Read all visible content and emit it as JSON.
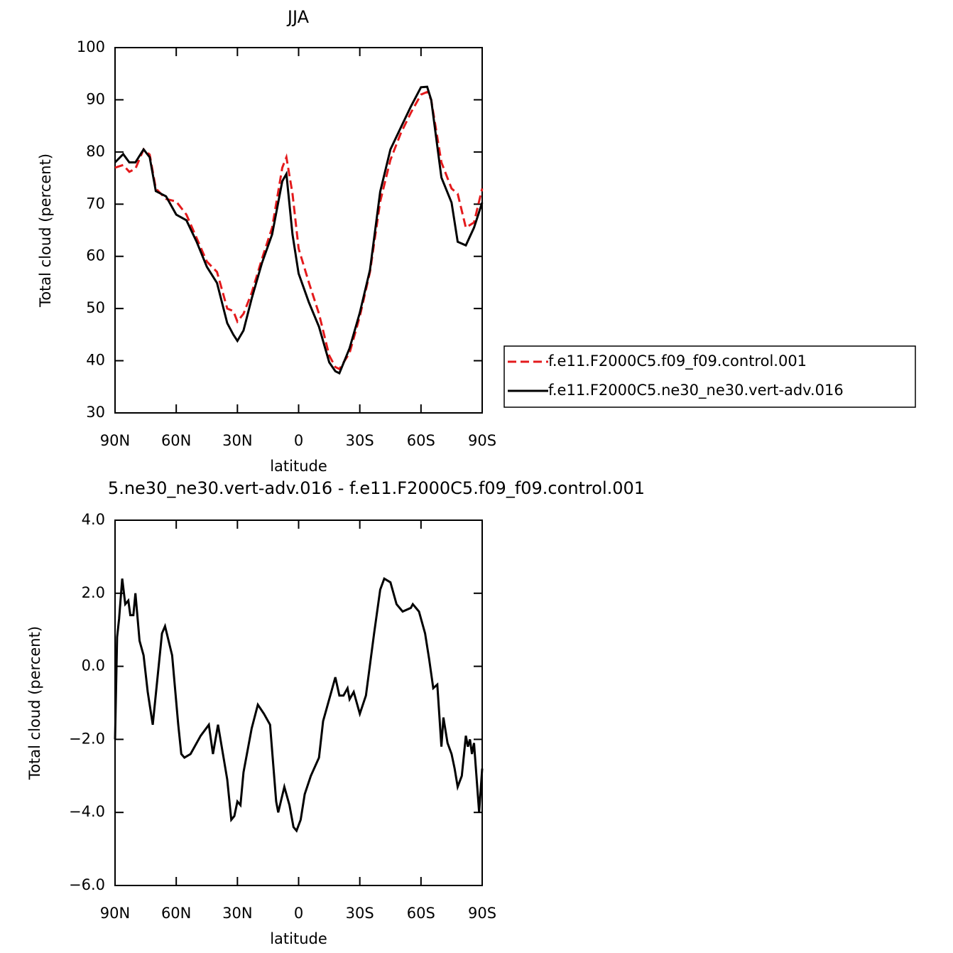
{
  "chart_data": [
    {
      "type": "line",
      "title": "JJA",
      "x_label": "latitude",
      "y_label": "Total cloud (percent)",
      "xlim": [
        90,
        -90
      ],
      "ylim": [
        30,
        100
      ],
      "xticks": [
        {
          "value": 90,
          "label": "90N"
        },
        {
          "value": 60,
          "label": "60N"
        },
        {
          "value": 30,
          "label": "30N"
        },
        0,
        {
          "value": -30,
          "label": "30S"
        },
        {
          "value": -60,
          "label": "60S"
        },
        {
          "value": -90,
          "label": "90S"
        }
      ],
      "yticks": [
        30,
        40,
        50,
        60,
        70,
        80,
        90,
        100
      ],
      "legend_position": "right",
      "x": [
        90,
        86,
        83,
        80,
        76,
        73,
        70,
        65,
        60,
        55,
        50,
        45,
        40,
        35,
        32,
        30,
        27,
        23,
        18,
        13,
        8,
        6,
        3,
        0,
        -5,
        -10,
        -15,
        -18,
        -20,
        -25,
        -30,
        -35,
        -40,
        -45,
        -50,
        -55,
        -60,
        -63,
        -65,
        -70,
        -75,
        -78,
        -82,
        -86,
        -90
      ],
      "series": [
        {
          "name": "f.e11.F2000C5.f09_f09.control.001",
          "color": "#e41a1c",
          "line_style": "dashed",
          "values": [
            77,
            77.5,
            76.2,
            76.8,
            80.5,
            79.5,
            73,
            71,
            70.5,
            68,
            63.5,
            59,
            57,
            50,
            49.5,
            47.5,
            49,
            53,
            59.5,
            65.5,
            77,
            79,
            72,
            61.5,
            55,
            49,
            41,
            38.8,
            38.4,
            41.5,
            48.5,
            57,
            70.5,
            78.5,
            83.5,
            87.5,
            91,
            91.5,
            90,
            78,
            73,
            72,
            65.5,
            66.5,
            73
          ]
        },
        {
          "name": "f.e11.F2000C5.ne30_ne30.vert-adv.016",
          "color": "#000000",
          "line_style": "solid",
          "values": [
            78,
            79.6,
            78,
            78,
            80.5,
            79,
            72.5,
            71.5,
            68,
            66.9,
            62.8,
            58,
            54.9,
            47.2,
            45,
            43.8,
            45.8,
            51.9,
            58.7,
            64.2,
            74.4,
            75.8,
            64.2,
            56.7,
            51.2,
            46.5,
            39.7,
            38,
            37.6,
            42.4,
            49.2,
            57.4,
            72.4,
            80.5,
            84.6,
            88.7,
            92.4,
            92.5,
            90,
            75.1,
            70.3,
            62.8,
            62.1,
            65.5,
            70.3
          ]
        }
      ]
    },
    {
      "type": "line",
      "title": "5.ne30_ne30.vert-adv.016 - f.e11.F2000C5.f09_f09.control.001",
      "x_label": "latitude",
      "y_label": "Total cloud (percent)",
      "xlim": [
        90,
        -90
      ],
      "ylim": [
        -6,
        4
      ],
      "xticks": [
        {
          "value": 90,
          "label": "90N"
        },
        {
          "value": 60,
          "label": "60N"
        },
        {
          "value": 30,
          "label": "30N"
        },
        0,
        {
          "value": -30,
          "label": "30S"
        },
        {
          "value": -60,
          "label": "60S"
        },
        {
          "value": -90,
          "label": "90S"
        }
      ],
      "yticks": [
        {
          "value": -6,
          "label": "−6.0"
        },
        {
          "value": -4,
          "label": "−4.0"
        },
        {
          "value": -2,
          "label": "−2.0"
        },
        {
          "value": 0,
          "label": "0.0"
        },
        {
          "value": 2,
          "label": "2.0"
        },
        {
          "value": 4,
          "label": "4.0"
        }
      ],
      "x": [
        90,
        89,
        88,
        86.5,
        85,
        83.5,
        82.5,
        81,
        80,
        78,
        76,
        74,
        71.5,
        67,
        65.5,
        62,
        59,
        57.5,
        56,
        53,
        48,
        44,
        42,
        39.5,
        35,
        33,
        31.5,
        30,
        28.5,
        27,
        23,
        20,
        17,
        14,
        11,
        10,
        7,
        4.5,
        2.5,
        1,
        -1,
        -3,
        -6,
        -10,
        -12,
        -16,
        -18,
        -20,
        -22,
        -24,
        -25,
        -27,
        -30,
        -33,
        -37,
        -40,
        -42,
        -45,
        -48,
        -51,
        -55,
        -56,
        -59,
        -62,
        -64,
        -66,
        -68,
        -70,
        -71,
        -73,
        -75,
        -76.5,
        -78,
        -80,
        -82,
        -83,
        -84,
        -85,
        -86,
        -88.5,
        -90
      ],
      "series": [
        {
          "color": "#000000",
          "line_style": "solid",
          "values": [
            -2,
            0.8,
            1.3,
            2.4,
            1.7,
            1.8,
            1.4,
            1.4,
            2.0,
            0.7,
            0.3,
            -0.7,
            -1.6,
            0.9,
            1.1,
            0.3,
            -1.6,
            -2.4,
            -2.5,
            -2.4,
            -1.9,
            -1.6,
            -2.4,
            -1.6,
            -3.1,
            -4.2,
            -4.1,
            -3.7,
            -3.8,
            -2.9,
            -1.7,
            -1.05,
            -1.3,
            -1.6,
            -3.7,
            -4.0,
            -3.3,
            -3.8,
            -4.4,
            -4.5,
            -4.2,
            -3.5,
            -3.0,
            -2.5,
            -1.5,
            -0.7,
            -0.3,
            -0.8,
            -0.8,
            -0.6,
            -0.9,
            -0.7,
            -1.3,
            -0.8,
            0.9,
            2.1,
            2.4,
            2.3,
            1.7,
            1.5,
            1.6,
            1.7,
            1.5,
            0.9,
            0.2,
            -0.6,
            -0.5,
            -2.2,
            -1.4,
            -2.1,
            -2.4,
            -2.8,
            -3.3,
            -3.0,
            -1.9,
            -2.2,
            -2.0,
            -2.4,
            -2.1,
            -4.0,
            -2.8
          ]
        }
      ]
    }
  ]
}
